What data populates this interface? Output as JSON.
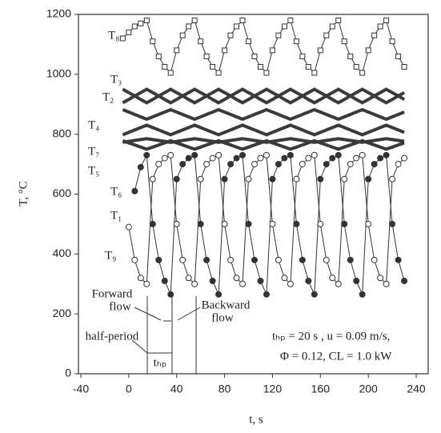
{
  "chart_data": {
    "type": "line",
    "xlabel": "t, s",
    "ylabel": "T, °C",
    "xlim": [
      -42,
      250
    ],
    "ylim": [
      0,
      1200
    ],
    "xticks": [
      -40,
      0,
      40,
      80,
      120,
      160,
      200,
      240
    ],
    "yticks": [
      0,
      200,
      400,
      600,
      800,
      1000,
      1200
    ],
    "x": [
      -5,
      0,
      5,
      10,
      15,
      20,
      25,
      30,
      35,
      40,
      45,
      50,
      55,
      60,
      65,
      70,
      75,
      80,
      85,
      90,
      95,
      100,
      105,
      110,
      115,
      120,
      125,
      130,
      135,
      140,
      145,
      150,
      155,
      160,
      165,
      170,
      175,
      180,
      185,
      190,
      195,
      200,
      205,
      210,
      215,
      220,
      225,
      230
    ],
    "series": [
      {
        "name": "T₈",
        "color": "#333333",
        "marker": "square-open",
        "values": [
          1120,
          1140,
          1160,
          1170,
          1180,
          1110,
          1060,
          1025,
          1005,
          1080,
          1130,
          1160,
          1180,
          1110,
          1060,
          1025,
          1005,
          1080,
          1130,
          1160,
          1180,
          1110,
          1060,
          1025,
          1005,
          1080,
          1130,
          1160,
          1180,
          1110,
          1060,
          1025,
          1005,
          1080,
          1130,
          1160,
          1180,
          1110,
          1060,
          1025,
          1005,
          1080,
          1130,
          1160,
          1180,
          1110,
          1060,
          1025
        ]
      },
      {
        "name": "T₃",
        "color": "#3a3a3a",
        "marker": "line",
        "values": [
          905,
          916,
          928,
          939,
          950,
          939,
          928,
          916,
          905,
          916,
          928,
          939,
          950,
          939,
          928,
          916,
          905,
          916,
          928,
          939,
          950,
          939,
          928,
          916,
          905,
          916,
          928,
          939,
          950,
          939,
          928,
          916,
          905,
          916,
          928,
          939,
          950,
          939,
          928,
          916,
          905,
          916,
          928,
          939,
          950,
          939,
          928,
          916
        ]
      },
      {
        "name": "T₂",
        "color": "#3a3a3a",
        "marker": "line",
        "values": [
          950,
          939,
          928,
          916,
          905,
          916,
          928,
          939,
          950,
          939,
          928,
          916,
          905,
          916,
          928,
          939,
          950,
          939,
          928,
          916,
          905,
          916,
          928,
          939,
          950,
          939,
          928,
          916,
          905,
          916,
          928,
          939,
          950,
          939,
          928,
          916,
          905,
          916,
          928,
          939,
          950,
          939,
          928,
          916,
          905,
          916,
          928,
          939
        ]
      },
      {
        "name": "T₄",
        "color": "#3a3a3a",
        "marker": "line",
        "values": [
          882,
          874,
          866,
          858,
          850,
          858,
          866,
          874,
          882,
          874,
          866,
          858,
          850,
          858,
          866,
          874,
          882,
          874,
          866,
          858,
          850,
          858,
          866,
          874,
          882,
          874,
          866,
          858,
          850,
          858,
          866,
          874,
          882,
          874,
          866,
          858,
          850,
          858,
          866,
          874,
          882,
          874,
          866,
          858,
          850,
          858,
          866,
          874
        ]
      },
      {
        "name": "T₇",
        "color": "#3a3a3a",
        "marker": "line",
        "values": [
          798,
          806,
          814,
          822,
          830,
          822,
          814,
          806,
          798,
          806,
          814,
          822,
          830,
          822,
          814,
          806,
          798,
          806,
          814,
          822,
          830,
          822,
          814,
          806,
          798,
          806,
          814,
          822,
          830,
          822,
          814,
          806,
          798,
          806,
          814,
          822,
          830,
          822,
          814,
          806,
          798,
          806,
          814,
          822,
          830,
          822,
          814,
          806
        ]
      },
      {
        "name": "T₅",
        "color": "#3a3a3a",
        "marker": "line",
        "values": [
          773,
          776,
          779,
          782,
          785,
          782,
          779,
          776,
          773,
          776,
          779,
          782,
          785,
          782,
          779,
          776,
          773,
          776,
          779,
          782,
          785,
          782,
          779,
          776,
          773,
          776,
          779,
          782,
          785,
          782,
          779,
          776,
          773,
          776,
          779,
          782,
          785,
          782,
          779,
          776,
          773,
          776,
          779,
          782,
          785,
          782,
          779,
          776
        ]
      },
      {
        "name": "T₆",
        "color": "#3a3a3a",
        "marker": "line",
        "values": [
          778,
          771,
          764,
          757,
          750,
          757,
          764,
          771,
          778,
          771,
          764,
          757,
          750,
          757,
          764,
          771,
          778,
          771,
          764,
          757,
          750,
          757,
          764,
          771,
          778,
          771,
          764,
          757,
          750,
          757,
          764,
          771,
          778,
          771,
          764,
          757,
          750,
          757,
          764,
          771,
          778,
          771,
          764,
          757,
          750,
          757,
          764,
          771
        ]
      },
      {
        "name": "T₁",
        "color": "#333333",
        "marker": "circle-filled",
        "values": [
          null,
          null,
          610,
          690,
          730,
          500,
          380,
          310,
          265,
          650,
          700,
          720,
          730,
          500,
          380,
          310,
          265,
          650,
          700,
          720,
          730,
          500,
          380,
          310,
          265,
          650,
          700,
          720,
          730,
          500,
          380,
          310,
          265,
          650,
          700,
          720,
          730,
          500,
          380,
          310,
          265,
          650,
          700,
          720,
          730,
          500,
          380,
          310
        ]
      },
      {
        "name": "T₉",
        "color": "#333333",
        "marker": "circle-open",
        "values": [
          null,
          490,
          380,
          320,
          300,
          650,
          700,
          720,
          730,
          500,
          380,
          320,
          300,
          650,
          700,
          720,
          730,
          500,
          380,
          320,
          300,
          650,
          700,
          720,
          730,
          500,
          380,
          320,
          300,
          650,
          700,
          720,
          730,
          500,
          380,
          320,
          300,
          650,
          700,
          720,
          730,
          500,
          380,
          320,
          300,
          650,
          700,
          720
        ]
      }
    ],
    "annotations": {
      "forward": [
        "Forward",
        "flow"
      ],
      "backward": [
        "Backward",
        "flow"
      ],
      "half_period": "half-period",
      "thp": "tₕₚ",
      "params": [
        "tₕₚ = 20 s , u = 0.09 m/s,",
        "Φ = 0.12, CL = 1.0 kW"
      ]
    }
  }
}
